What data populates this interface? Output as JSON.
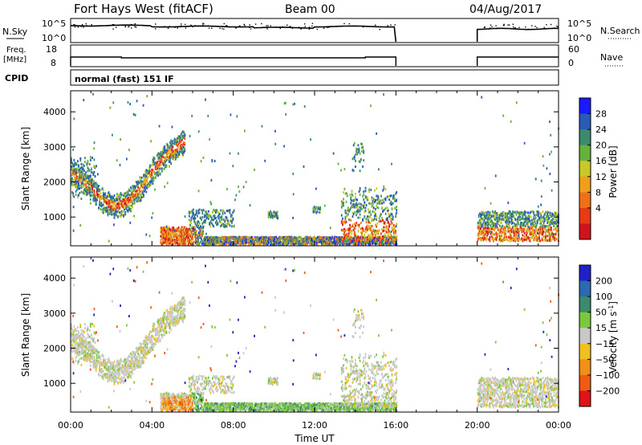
{
  "header": {
    "station": "Fort Hays West (fitACF)",
    "beam": "Beam 00",
    "date": "04/Aug/2017"
  },
  "status_panels": {
    "nsky_label": "N.Sky",
    "nsky_ticks": [
      "10^5",
      "10^0"
    ],
    "nsearch_label": "N.Search",
    "nsearch_ticks": [
      "10^5",
      "10^0"
    ],
    "freq_label": "Freq.",
    "freq_unit": "[MHz]",
    "freq_ticks": [
      "18",
      "8"
    ],
    "nave_label": "Nave",
    "nave_ticks": [
      "60",
      "0"
    ],
    "cpid_label": "CPID",
    "cpid_text": "normal (fast) 151 IF"
  },
  "chart_data": [
    {
      "type": "heatmap",
      "name": "power",
      "ylabel": "Slant Range [km]",
      "xlabel": "",
      "xlim_hours": [
        0,
        24
      ],
      "ylim": [
        180,
        4600
      ],
      "y_ticks": [
        1000,
        2000,
        3000,
        4000
      ],
      "x_tick_labels": [
        "00:00",
        "04:00",
        "08:00",
        "12:00",
        "16:00",
        "20:00",
        "00:00"
      ],
      "colorbar": {
        "label": "Power [dB]",
        "ticks": [
          "28",
          "24",
          "20",
          "16",
          "12",
          "8",
          "4"
        ],
        "colors": [
          "#1a1aff",
          "#2a5ab8",
          "#3c8a6e",
          "#66b03c",
          "#c8c828",
          "#f0a018",
          "#f07018",
          "#e83a14",
          "#d0141e"
        ]
      },
      "data_gap_hours": [
        16,
        20
      ]
    },
    {
      "type": "heatmap",
      "name": "velocity",
      "ylabel": "Slant Range [km]",
      "xlabel": "Time UT",
      "xlim_hours": [
        0,
        24
      ],
      "ylim": [
        180,
        4600
      ],
      "y_ticks": [
        1000,
        2000,
        3000,
        4000
      ],
      "x_tick_labels": [
        "00:00",
        "04:00",
        "08:00",
        "12:00",
        "16:00",
        "20:00",
        "00:00"
      ],
      "colorbar": {
        "label": "Velocity [m s",
        "label_exp": "-1",
        "label_close": "]",
        "ticks": [
          "200",
          "100",
          "50",
          "15",
          "−15",
          "−50",
          "−100",
          "−200"
        ],
        "colors": [
          "#2020c8",
          "#2a6ab0",
          "#3c8a6e",
          "#7ac83c",
          "#c8c8c8",
          "#f0c020",
          "#f09018",
          "#f05a14",
          "#e01418"
        ]
      },
      "data_gap_hours": [
        16,
        20
      ]
    }
  ]
}
